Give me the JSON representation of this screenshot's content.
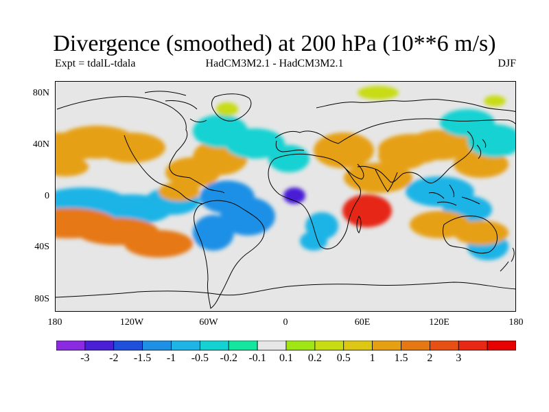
{
  "title": "Divergence (smoothed) at 200 hPa (10**6 m/s)",
  "subtitle_left": "Expt = tdalL-tdala",
  "subtitle_center": "HadCM3M2.1 - HadCM3M2.1",
  "subtitle_right": "DJF",
  "lat_ticks": [
    "80N",
    "40N",
    "0",
    "40S",
    "80S"
  ],
  "lon_ticks": [
    "180",
    "120W",
    "60W",
    "0",
    "60E",
    "120E",
    "180"
  ],
  "colorbar": {
    "colors": [
      "#8a2be2",
      "#4a1fd6",
      "#1e50dc",
      "#1e90e6",
      "#1eb4e6",
      "#14d2d2",
      "#14e6a0",
      "#e6e6e6",
      "#a0e614",
      "#c8dc14",
      "#dcc814",
      "#e6a014",
      "#e67814",
      "#e65014",
      "#e62814",
      "#e60000"
    ],
    "labels": [
      "-3",
      "-2",
      "-1.5",
      "-1",
      "-0.5",
      "-0.2",
      "-0.1",
      "0.1",
      "0.2",
      "0.5",
      "1",
      "1.5",
      "2",
      "3"
    ]
  },
  "map_field": [
    {
      "name": "north-pacific-positive-band",
      "value": 1
    },
    {
      "name": "tropical-eastern-pacific-convergence",
      "value": -1
    },
    {
      "name": "south-pacific-positive-band",
      "value": 1.5
    },
    {
      "name": "caribbean-positive-area",
      "value": 1
    },
    {
      "name": "tropical-south-america-convergence",
      "value": -1.5
    },
    {
      "name": "north-atlantic-convergence-band",
      "value": -0.5
    },
    {
      "name": "gulf-of-guinea-convergence-center",
      "value": -3
    },
    {
      "name": "southern-africa-convergence",
      "value": -1
    },
    {
      "name": "indian-ocean-divergence-max",
      "value": 3
    },
    {
      "name": "north-africa-arabia-positive",
      "value": 1
    },
    {
      "name": "maritime-continent-convergence",
      "value": -1
    },
    {
      "name": "northwest-pacific-positive",
      "value": 1
    },
    {
      "name": "northeast-asia-convergence",
      "value": -0.5
    },
    {
      "name": "southwest-pacific-positive",
      "value": 1
    },
    {
      "name": "arctic-positive-patches",
      "value": 0.2
    }
  ]
}
